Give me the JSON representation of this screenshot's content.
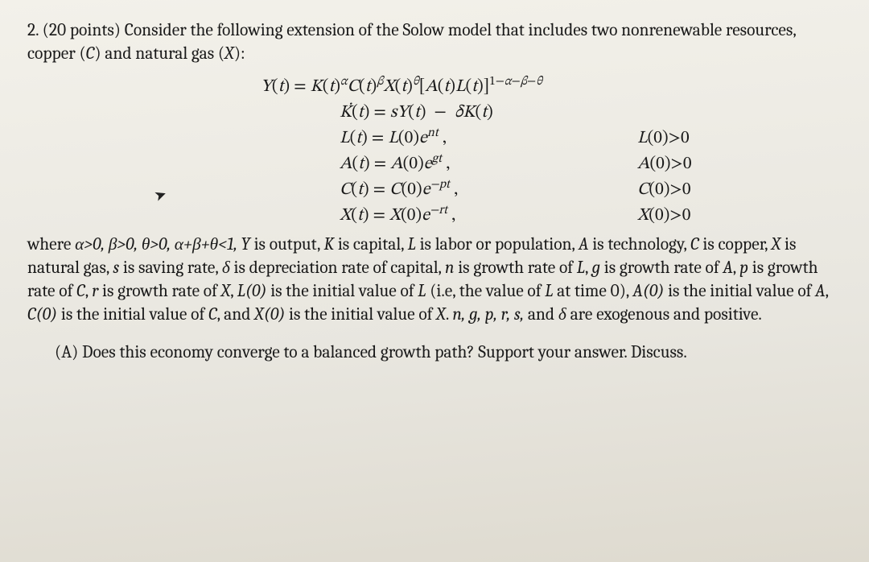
{
  "colors": {
    "background_top": "#f3f1ea",
    "background_bottom": "#dedacf",
    "text": "#1a1a1a"
  },
  "typography": {
    "body_font": "Cambria / Georgia serif",
    "body_size_pt": 16,
    "math_font": "Cambria Math / STIX",
    "math_style": "italic"
  },
  "problem": {
    "number": "2.",
    "points": "(20 points)",
    "lead": "Consider the following extension of the Solow model that includes two nonrenewable resources, copper (",
    "copper_sym": "C",
    "lead_mid": ") and natural gas (",
    "gas_sym": "X",
    "lead_end": "):"
  },
  "equations": {
    "production": "Y(t) = K(t)^α C(t)^β X(t)^θ [A(t)L(t)]^{1−α−β−θ}",
    "capital": "K̇(t) = sY(t) − δK(t)",
    "labor_lhs": "L(t) = L(0)e",
    "labor_exp": "nt",
    "labor_cond": "L(0)>0",
    "tech_lhs": "A(t) = A(0)e",
    "tech_exp": "gt",
    "tech_cond": "A(0)>0",
    "copper_lhs": "C(t) = C(0)e",
    "copper_exp": "−pt",
    "copper_cond": "C(0)>0",
    "gas_lhs": "X(t) = X(0)e",
    "gas_exp": "−rt",
    "gas_cond": "X(0)>0"
  },
  "definitions": {
    "where": "where ",
    "alpha": "α>0, β>0, θ>0, α+β+θ<1, ",
    "Y": "Y",
    "Y_def": " is output, ",
    "K": "K",
    "K_def": " is capital, ",
    "L": "L",
    "L_def": " is labor or population, ",
    "A": "A",
    "A_def": " is technology, ",
    "C": "C",
    "C_def": " is copper, ",
    "X": "X",
    "X_def": " is natural gas,  ",
    "s": "s",
    "s_def": " is saving rate, ",
    "delta": "δ",
    "delta_def": " is depreciation rate of capital, ",
    "n": "n",
    "n_def": " is growth rate of ",
    "L2": "L",
    "comma1": ", ",
    "g": "g",
    "g_def": " is growth rate of ",
    "A2": "A",
    "comma2": ", ",
    "p": "p",
    "p_def": " is growth rate of ",
    "C2": "C",
    "comma3": ", ",
    "r": "r",
    "r_def": " is growth rate of ",
    "X2": "X",
    "comma4": ", ",
    "L0": "L(0)",
    "L0_def": " is the initial value of ",
    "L3": "L",
    "L0_paren": " (i.e, the value of ",
    "L4": "L",
    "L0_end": " at time 0), ",
    "A0": "A(0)",
    "A0_def": " is the initial value of ",
    "A3": "A",
    "comma5": ", ",
    "C0": "C(0)",
    "C0_def": " is the initial value of ",
    "C3": "C",
    "comma6": ", and ",
    "X0": "X(0)",
    "X0_def": " is the initial value of ",
    "X3": "X",
    "period": ".  ",
    "exog_list": "n, g, p, r, s,",
    "exog_and": " and ",
    "exog_delta": "δ",
    "exog_end": " are exogenous and positive."
  },
  "partA": {
    "label": "(A) ",
    "text": "Does this economy converge to a balanced growth path?  Support your answer.  Discuss."
  }
}
